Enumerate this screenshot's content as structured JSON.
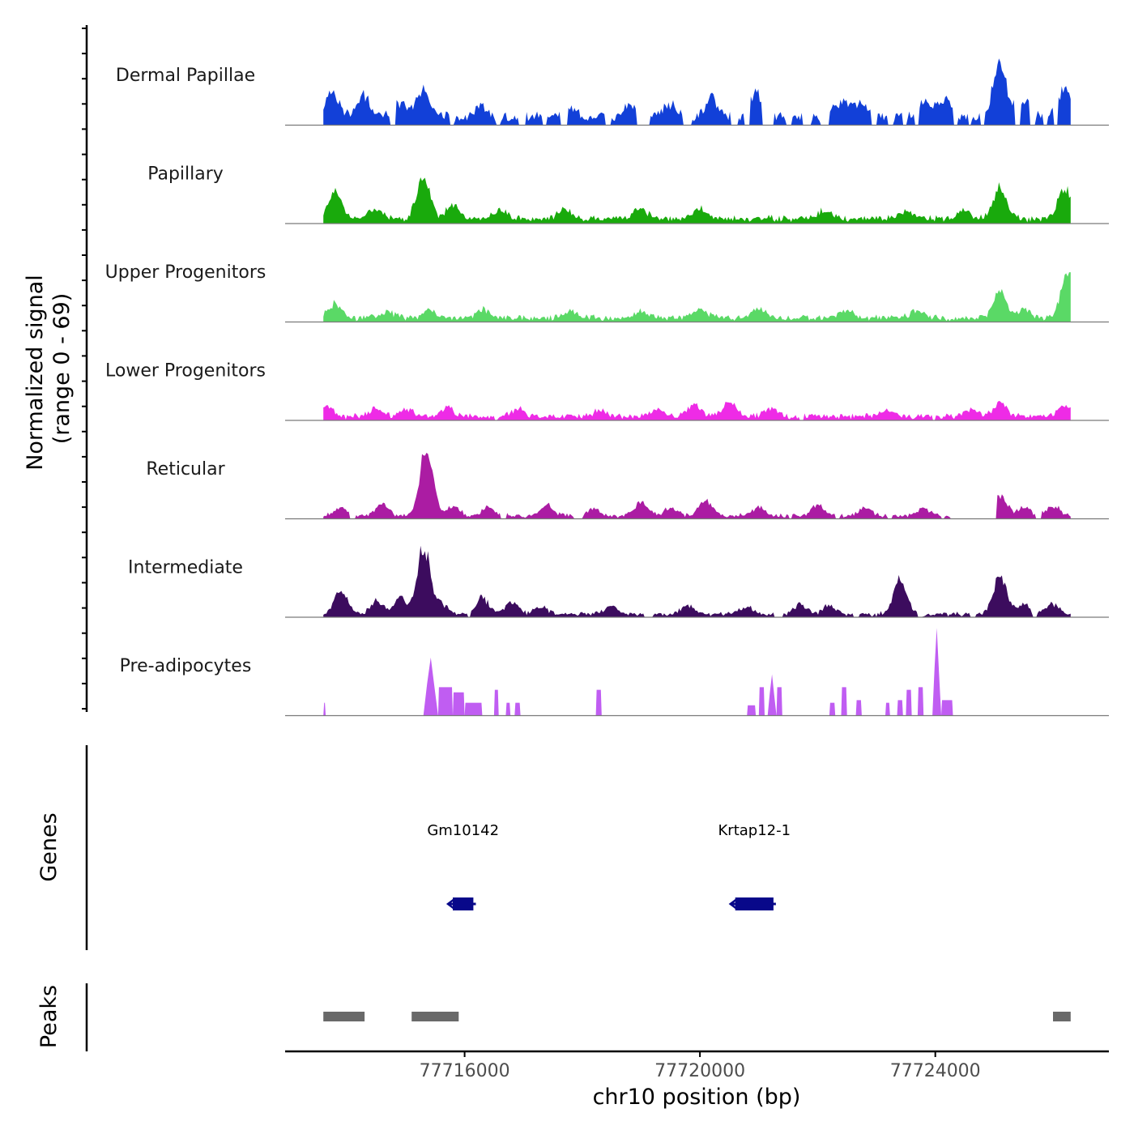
{
  "chart_data": {
    "type": "coverage-track",
    "region": {
      "chrom": "chr10",
      "start": 77712950,
      "end": 77726950
    },
    "x_axis": {
      "label": "chr10 position (bp)",
      "ticks": [
        77716000,
        77720000,
        77724000
      ],
      "tick_labels": [
        "77716000",
        "77720000",
        "77724000"
      ]
    },
    "coverage": {
      "ylabel_line1": "Normalized signal",
      "ylabel_line2": "(range 0 - 69)",
      "ylim": [
        0,
        69
      ],
      "data_start": 77713600,
      "data_end": 77726300,
      "tracks": [
        {
          "name": "Dermal Papillae",
          "color": "#1240d8",
          "baseline": 8,
          "noise": 0.9,
          "peaks": [
            [
              77713750,
              20
            ],
            [
              77714280,
              18
            ],
            [
              77714900,
              10
            ],
            [
              77715300,
              22
            ],
            [
              77716300,
              8
            ],
            [
              77717800,
              8
            ],
            [
              77718800,
              8
            ],
            [
              77719500,
              10
            ],
            [
              77720200,
              15
            ],
            [
              77720950,
              17
            ],
            [
              77722400,
              12
            ],
            [
              77722700,
              12
            ],
            [
              77723800,
              12
            ],
            [
              77724150,
              14
            ],
            [
              77725100,
              42
            ],
            [
              77725500,
              12
            ],
            [
              77726200,
              22
            ]
          ],
          "gaps": [
            [
              77714730,
              77714840
            ],
            [
              77715740,
              77715820
            ],
            [
              77716530,
              77716600
            ],
            [
              77716920,
              77717050
            ],
            [
              77717320,
              77717400
            ],
            [
              77717630,
              77717760
            ],
            [
              77718400,
              77718500
            ],
            [
              77718930,
              77719150
            ],
            [
              77719700,
              77719850
            ],
            [
              77720520,
              77720650
            ],
            [
              77720750,
              77720850
            ],
            [
              77721050,
              77721250
            ],
            [
              77721450,
              77721570
            ],
            [
              77721730,
              77721900
            ],
            [
              77722050,
              77722200
            ],
            [
              77722900,
              77723000
            ],
            [
              77723180,
              77723300
            ],
            [
              77723450,
              77723530
            ],
            [
              77723650,
              77723720
            ],
            [
              77724300,
              77724370
            ],
            [
              77724550,
              77724600
            ],
            [
              77724770,
              77724850
            ],
            [
              77725350,
              77725450
            ],
            [
              77725600,
              77725700
            ],
            [
              77725830,
              77725900
            ],
            [
              77726000,
              77726080
            ]
          ]
        },
        {
          "name": "Papillary",
          "color": "#19aa0c",
          "baseline": 5,
          "noise": 0.9,
          "peaks": [
            [
              77713800,
              22
            ],
            [
              77714500,
              8
            ],
            [
              77715300,
              30
            ],
            [
              77715800,
              10
            ],
            [
              77716600,
              6
            ],
            [
              77717700,
              8
            ],
            [
              77719000,
              8
            ],
            [
              77720000,
              8
            ],
            [
              77722100,
              6
            ],
            [
              77723500,
              6
            ],
            [
              77724500,
              6
            ],
            [
              77725100,
              25
            ],
            [
              77726200,
              25
            ]
          ],
          "gaps": []
        },
        {
          "name": "Upper Progenitors",
          "color": "#5ad966",
          "baseline": 4,
          "noise": 1.0,
          "peaks": [
            [
              77713800,
              12
            ],
            [
              77714700,
              5
            ],
            [
              77715400,
              6
            ],
            [
              77716300,
              6
            ],
            [
              77717800,
              5
            ],
            [
              77719000,
              5
            ],
            [
              77720000,
              7
            ],
            [
              77721000,
              8
            ],
            [
              77722500,
              6
            ],
            [
              77723700,
              6
            ],
            [
              77725100,
              20
            ],
            [
              77725500,
              6
            ],
            [
              77726250,
              36
            ]
          ],
          "gaps": []
        },
        {
          "name": "Lower Progenitors",
          "color": "#ee2be6",
          "baseline": 4,
          "noise": 1.0,
          "peaks": [
            [
              77713650,
              8
            ],
            [
              77714500,
              6
            ],
            [
              77715000,
              6
            ],
            [
              77715700,
              7
            ],
            [
              77716900,
              6
            ],
            [
              77718300,
              5
            ],
            [
              77719300,
              7
            ],
            [
              77719900,
              9
            ],
            [
              77720500,
              12
            ],
            [
              77721200,
              6
            ],
            [
              77723200,
              5
            ],
            [
              77724600,
              6
            ],
            [
              77725100,
              10
            ],
            [
              77726200,
              8
            ]
          ],
          "gaps": [
            [
              77716500,
              77716550
            ],
            [
              77721700,
              77721760
            ],
            [
              77723950,
              77724000
            ]
          ]
        },
        {
          "name": "Reticular",
          "color": "#ab1ca3",
          "baseline": 3,
          "noise": 0.8,
          "peaks": [
            [
              77713900,
              6
            ],
            [
              77714600,
              9
            ],
            [
              77715350,
              52
            ],
            [
              77715800,
              8
            ],
            [
              77716400,
              7
            ],
            [
              77717400,
              8
            ],
            [
              77718200,
              6
            ],
            [
              77719000,
              10
            ],
            [
              77719500,
              6
            ],
            [
              77720100,
              12
            ],
            [
              77721000,
              6
            ],
            [
              77722000,
              8
            ],
            [
              77722800,
              6
            ],
            [
              77723800,
              7
            ],
            [
              77725100,
              16
            ],
            [
              77725500,
              7
            ],
            [
              77726000,
              8
            ]
          ],
          "gaps": [
            [
              77714050,
              77714150
            ],
            [
              77716600,
              77716700
            ],
            [
              77717850,
              77718000
            ],
            [
              77721500,
              77721560
            ],
            [
              77722300,
              77722380
            ],
            [
              77723200,
              77723270
            ],
            [
              77724100,
              77724150
            ],
            [
              77724250,
              77725050
            ],
            [
              77725700,
              77725800
            ]
          ]
        },
        {
          "name": "Intermediate",
          "color": "#3c0c5e",
          "baseline": 3,
          "noise": 0.9,
          "peaks": [
            [
              77713900,
              18
            ],
            [
              77714500,
              10
            ],
            [
              77714900,
              12
            ],
            [
              77715300,
              52
            ],
            [
              77715600,
              8
            ],
            [
              77716300,
              12
            ],
            [
              77716800,
              10
            ],
            [
              77717300,
              6
            ],
            [
              77718500,
              6
            ],
            [
              77719800,
              7
            ],
            [
              77720800,
              6
            ],
            [
              77721700,
              8
            ],
            [
              77722200,
              7
            ],
            [
              77723400,
              28
            ],
            [
              77725100,
              30
            ],
            [
              77725500,
              7
            ],
            [
              77726000,
              8
            ]
          ],
          "gaps": [
            [
              77716050,
              77716100
            ],
            [
              77719050,
              77719200
            ],
            [
              77721250,
              77721400
            ],
            [
              77722600,
              77722700
            ],
            [
              77723700,
              77723780
            ],
            [
              77724600,
              77724680
            ],
            [
              77725650,
              77725720
            ]
          ]
        },
        {
          "name": "Pre-adipocytes",
          "color": "#c05df2",
          "baseline": 0,
          "noise": 0,
          "blocks": [
            [
              77713600,
              77713640,
              10
            ],
            [
              77715300,
              77715550,
              45
            ],
            [
              77715550,
              77715800,
              22
            ],
            [
              77715800,
              77716000,
              18
            ],
            [
              77716000,
              77716300,
              10
            ],
            [
              77716500,
              77716580,
              20
            ],
            [
              77716700,
              77716780,
              10
            ],
            [
              77716850,
              77716950,
              10
            ],
            [
              77718230,
              77718330,
              20
            ],
            [
              77720800,
              77720950,
              8
            ],
            [
              77721000,
              77721100,
              22
            ],
            [
              77721150,
              77721300,
              32
            ],
            [
              77721300,
              77721400,
              22
            ],
            [
              77722200,
              77722300,
              10
            ],
            [
              77722400,
              77722500,
              22
            ],
            [
              77722650,
              77722750,
              12
            ],
            [
              77723150,
              77723230,
              10
            ],
            [
              77723350,
              77723450,
              12
            ],
            [
              77723500,
              77723600,
              20
            ],
            [
              77723700,
              77723800,
              22
            ],
            [
              77723950,
              77724100,
              68
            ],
            [
              77724100,
              77724300,
              12
            ]
          ]
        }
      ]
    },
    "genes": {
      "ylabel": "Genes",
      "items": [
        {
          "name": "Gm10142",
          "start": 77715800,
          "end": 77716150,
          "strand": "-",
          "color": "#08088a"
        },
        {
          "name": "Krtap12-1",
          "start": 77720600,
          "end": 77721250,
          "strand": "-",
          "color": "#08088a"
        }
      ]
    },
    "peaks": {
      "ylabel": "Peaks",
      "color": "#696969",
      "items": [
        [
          77713600,
          77714300
        ],
        [
          77715100,
          77715900
        ],
        [
          77726000,
          77726300
        ]
      ]
    }
  }
}
